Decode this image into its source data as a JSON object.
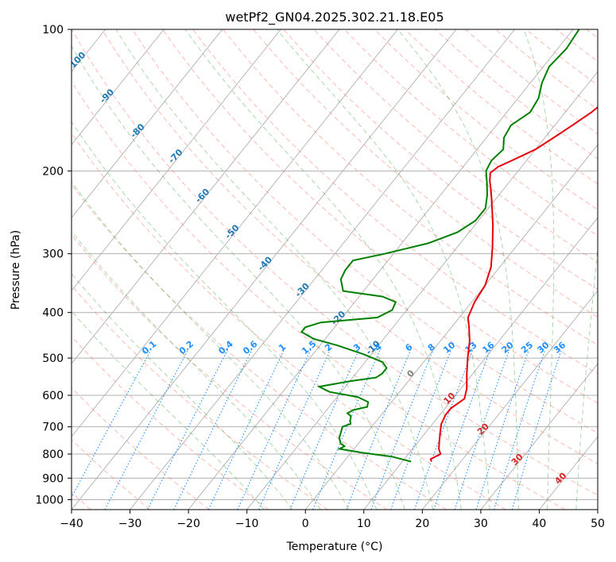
{
  "chart_data": {
    "type": "line",
    "title": "wetPf2_GN04.2025.302.21.18.E05",
    "xlabel": "Temperature (°C)",
    "ylabel": "Pressure (hPa)",
    "xlim": [
      -40,
      50
    ],
    "ylim": [
      1050,
      100
    ],
    "y_scale": "log",
    "grid": true,
    "x_ticks": [
      -40,
      -30,
      -20,
      -10,
      0,
      10,
      20,
      30,
      40,
      50
    ],
    "y_ticks": [
      100,
      200,
      300,
      400,
      500,
      600,
      700,
      800,
      900,
      1000
    ],
    "series": [
      {
        "color": "#e8000b",
        "points": [
          [
            15.0,
            830
          ],
          [
            14.5,
            820
          ],
          [
            15.5,
            800
          ],
          [
            14.5,
            780
          ],
          [
            13.5,
            750
          ],
          [
            12.5,
            720
          ],
          [
            11.5,
            690
          ],
          [
            11.0,
            660
          ],
          [
            11.0,
            640
          ],
          [
            12.0,
            610
          ],
          [
            11.0,
            580
          ],
          [
            9.0,
            540
          ],
          [
            7.0,
            500
          ],
          [
            5.0,
            460
          ],
          [
            3.0,
            430
          ],
          [
            1.5,
            410
          ],
          [
            0.5,
            380
          ],
          [
            0.0,
            350
          ],
          [
            -1.5,
            320
          ],
          [
            -4.0,
            290
          ],
          [
            -7.0,
            260
          ],
          [
            -10.0,
            235
          ],
          [
            -12.0,
            220
          ],
          [
            -13.5,
            210
          ],
          [
            -14.5,
            202
          ],
          [
            -14.0,
            196
          ],
          [
            -12.5,
            190
          ],
          [
            -10.0,
            180
          ],
          [
            -8.5,
            170
          ],
          [
            -7.0,
            160
          ],
          [
            -5.5,
            150
          ],
          [
            -4.5,
            140
          ],
          [
            -3.5,
            130
          ],
          [
            -3.0,
            120
          ],
          [
            -3.0,
            110
          ],
          [
            -3.0,
            100
          ]
        ]
      },
      {
        "color": "#008000",
        "points": [
          [
            11.5,
            830
          ],
          [
            7.5,
            810
          ],
          [
            2.0,
            795
          ],
          [
            -2.5,
            780
          ],
          [
            -2.0,
            770
          ],
          [
            -3.0,
            760
          ],
          [
            -4.0,
            740
          ],
          [
            -4.5,
            720
          ],
          [
            -5.0,
            700
          ],
          [
            -4.0,
            690
          ],
          [
            -4.5,
            680
          ],
          [
            -5.0,
            665
          ],
          [
            -6.0,
            655
          ],
          [
            -5.5,
            645
          ],
          [
            -3.5,
            635
          ],
          [
            -4.0,
            620
          ],
          [
            -6.5,
            605
          ],
          [
            -12.0,
            590
          ],
          [
            -14.5,
            575
          ],
          [
            -10.0,
            560
          ],
          [
            -6.0,
            550
          ],
          [
            -5.5,
            540
          ],
          [
            -5.5,
            525
          ],
          [
            -7.0,
            510
          ],
          [
            -11.5,
            490
          ],
          [
            -17.0,
            470
          ],
          [
            -22.0,
            455
          ],
          [
            -25.0,
            440
          ],
          [
            -25.0,
            430
          ],
          [
            -23.0,
            420
          ],
          [
            -14.0,
            410
          ],
          [
            -12.5,
            395
          ],
          [
            -13.0,
            380
          ],
          [
            -16.0,
            370
          ],
          [
            -23.5,
            360
          ],
          [
            -25.5,
            340
          ],
          [
            -26.0,
            325
          ],
          [
            -26.0,
            310
          ],
          [
            -21.5,
            300
          ],
          [
            -15.5,
            285
          ],
          [
            -12.0,
            270
          ],
          [
            -10.5,
            255
          ],
          [
            -10.5,
            240
          ],
          [
            -12.0,
            225
          ],
          [
            -14.0,
            210
          ],
          [
            -15.5,
            200
          ],
          [
            -16.0,
            190
          ],
          [
            -15.5,
            180
          ],
          [
            -17.0,
            170
          ],
          [
            -17.5,
            160
          ],
          [
            -16.0,
            150
          ],
          [
            -16.5,
            140
          ],
          [
            -18.0,
            130
          ],
          [
            -19.0,
            120
          ],
          [
            -18.5,
            110
          ],
          [
            -19.0,
            100
          ]
        ]
      }
    ],
    "mixing_ratio_labels": [
      "0.1",
      "0.2",
      "0.4",
      "0.6",
      "1",
      "1.5",
      "2",
      "3",
      "4",
      "6",
      "8",
      "10",
      "13",
      "16",
      "20",
      "25",
      "30",
      "36"
    ],
    "isotherm_labels": [
      "-100",
      "-90",
      "-80",
      "-70",
      "-60",
      "-50",
      "-40",
      "-30",
      "-20",
      "-10",
      "0",
      "10",
      "20",
      "30",
      "40"
    ],
    "colors": {
      "temperature": "#e8000b",
      "dewpoint": "#008000",
      "isotherm_label": "#1f77b4",
      "mixing_ratio": "#1e90ff",
      "dry_adiabat": "#fa8072",
      "moist_adiabat": "#2ca02c",
      "grid": "#b0b0b0"
    }
  }
}
